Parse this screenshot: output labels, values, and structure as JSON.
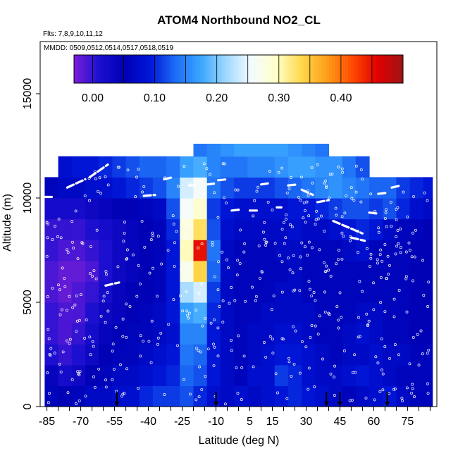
{
  "chart_data": {
    "type": "heatmap",
    "title": "ATOM4 Northbound NO2_CL",
    "subtitle_flights": "Flts: 7,8,9,10,11,12",
    "subtitle_dates": "MMDD: 0509,0512,0514,0517,0518,0519",
    "xlabel": "Latitude (deg N)",
    "ylabel": "Altitude (m)",
    "xlim": [
      -88,
      88
    ],
    "ylim": [
      0,
      17500
    ],
    "x_tick_labels": [
      "-85",
      "-70",
      "-55",
      "-40",
      "-25",
      "-10",
      "5",
      "15",
      "30",
      "45",
      "60",
      "75"
    ],
    "x_tick_values": [
      -85,
      -70,
      -55,
      -40,
      -25,
      -10,
      5,
      15,
      30,
      45,
      60,
      75
    ],
    "y_tick_labels": [
      "0",
      "5000",
      "10000",
      "15000"
    ],
    "y_tick_values": [
      0,
      5000,
      10000,
      15000
    ],
    "colorbar": {
      "range": [
        -0.03,
        0.5
      ],
      "tick_labels": [
        "0.00",
        "0.10",
        "0.20",
        "0.30",
        "0.40"
      ],
      "tick_values": [
        0.0,
        0.1,
        0.2,
        0.3,
        0.4
      ],
      "colors": [
        "#7b1fd8",
        "#1a0fd0",
        "#0000b5",
        "#0016d8",
        "#1c6cf5",
        "#3aa5ff",
        "#9fd8ff",
        "#f4fbff",
        "#ffffc8",
        "#ffd84a",
        "#ff9e1a",
        "#ff4a00",
        "#e00000",
        "#9e1414"
      ]
    },
    "value_grid": {
      "lat_bins": [
        -86,
        -80,
        -74,
        -68,
        -62,
        -56,
        -50,
        -44,
        -38,
        -32,
        -26,
        -20,
        -14,
        -8,
        -2,
        4,
        10,
        16,
        22,
        28,
        34,
        40,
        46,
        52,
        58,
        64,
        70,
        76,
        82,
        86
      ],
      "alt_bins": [
        0,
        1000,
        2000,
        3000,
        4000,
        5000,
        6000,
        7000,
        8000,
        9000,
        10000,
        11000,
        12000,
        12600
      ],
      "values": [
        [
          0.06,
          0.05,
          0.06,
          0.07,
          0.07,
          0.08,
          0.08,
          0.1,
          0.11,
          0.11,
          0.12,
          0.1,
          0.08,
          0.07,
          0.08,
          0.07,
          0.08,
          0.09,
          0.1,
          0.09,
          0.08,
          0.07,
          0.06,
          0.07,
          0.08,
          0.09,
          0.07,
          0.06,
          0.06
        ],
        [
          0.04,
          0.02,
          0.03,
          0.05,
          0.06,
          0.07,
          0.07,
          0.08,
          0.09,
          0.1,
          0.13,
          0.12,
          0.09,
          0.07,
          0.06,
          0.08,
          0.08,
          0.11,
          0.1,
          0.08,
          0.07,
          0.07,
          0.08,
          0.09,
          0.08,
          0.07,
          0.06,
          0.06,
          0.06
        ],
        [
          0.01,
          0.0,
          0.01,
          0.03,
          0.05,
          0.06,
          0.06,
          0.07,
          0.08,
          0.09,
          0.14,
          0.13,
          0.09,
          0.07,
          0.06,
          0.07,
          0.08,
          0.09,
          0.09,
          0.08,
          0.07,
          0.06,
          0.07,
          0.07,
          0.08,
          0.07,
          0.07,
          0.06,
          0.06
        ],
        [
          0.0,
          -0.01,
          0.0,
          0.02,
          0.04,
          0.05,
          0.06,
          0.06,
          0.07,
          0.08,
          0.15,
          0.15,
          0.09,
          0.07,
          0.06,
          0.07,
          0.07,
          0.08,
          0.08,
          0.07,
          0.06,
          0.06,
          0.07,
          0.08,
          0.07,
          0.06,
          0.06,
          0.05,
          0.05
        ],
        [
          0.0,
          -0.01,
          -0.01,
          0.01,
          0.03,
          0.04,
          0.05,
          0.06,
          0.07,
          0.09,
          0.17,
          0.18,
          0.1,
          0.07,
          0.06,
          0.06,
          0.07,
          0.07,
          0.07,
          0.07,
          0.06,
          0.06,
          0.06,
          0.07,
          0.07,
          0.06,
          0.06,
          0.05,
          0.05
        ],
        [
          -0.01,
          -0.02,
          -0.01,
          0.0,
          0.02,
          0.04,
          0.05,
          0.05,
          0.06,
          0.09,
          0.22,
          0.24,
          0.11,
          0.07,
          0.06,
          0.06,
          0.06,
          0.07,
          0.07,
          0.06,
          0.06,
          0.06,
          0.06,
          0.06,
          0.06,
          0.06,
          0.06,
          0.05,
          0.05
        ],
        [
          -0.01,
          -0.02,
          -0.02,
          -0.01,
          0.01,
          0.03,
          0.04,
          0.05,
          0.06,
          0.09,
          0.27,
          0.34,
          0.13,
          0.07,
          0.06,
          0.06,
          0.06,
          0.06,
          0.07,
          0.06,
          0.06,
          0.06,
          0.06,
          0.06,
          0.06,
          0.06,
          0.06,
          0.05,
          0.05
        ],
        [
          0.0,
          -0.01,
          -0.01,
          0.0,
          0.01,
          0.03,
          0.04,
          0.05,
          0.06,
          0.09,
          0.3,
          0.45,
          0.14,
          0.07,
          0.06,
          0.06,
          0.06,
          0.07,
          0.07,
          0.06,
          0.06,
          0.06,
          0.07,
          0.08,
          0.06,
          0.06,
          0.06,
          0.05,
          0.05
        ],
        [
          0.0,
          0.0,
          0.0,
          0.01,
          0.02,
          0.03,
          0.04,
          0.05,
          0.06,
          0.1,
          0.28,
          0.33,
          0.12,
          0.08,
          0.07,
          0.07,
          0.07,
          0.07,
          0.08,
          0.07,
          0.07,
          0.08,
          0.09,
          0.1,
          0.09,
          0.07,
          0.06,
          0.06,
          0.05
        ],
        [
          0.02,
          0.02,
          0.02,
          0.03,
          0.04,
          0.05,
          0.05,
          0.06,
          0.07,
          0.12,
          0.26,
          0.29,
          0.11,
          0.09,
          0.08,
          0.08,
          0.08,
          0.08,
          0.09,
          0.09,
          0.1,
          0.11,
          0.12,
          0.12,
          0.11,
          0.12,
          0.1,
          0.08,
          0.07
        ],
        [
          0.06,
          0.07,
          0.07,
          0.08,
          0.08,
          0.09,
          0.1,
          0.11,
          0.12,
          0.15,
          0.24,
          0.26,
          0.14,
          0.12,
          0.11,
          0.11,
          0.11,
          0.12,
          0.13,
          0.14,
          0.15,
          0.16,
          0.15,
          0.14,
          0.13,
          0.13,
          0.11,
          0.1,
          0.09
        ],
        [
          null,
          0.08,
          0.09,
          0.09,
          0.1,
          0.11,
          0.12,
          0.13,
          0.13,
          0.14,
          0.17,
          0.18,
          0.15,
          0.14,
          0.14,
          0.15,
          0.15,
          0.16,
          0.17,
          0.17,
          0.16,
          0.16,
          0.14,
          0.12,
          null,
          null,
          null,
          null,
          null
        ],
        [
          null,
          null,
          null,
          null,
          null,
          null,
          null,
          null,
          null,
          null,
          null,
          0.14,
          0.15,
          0.16,
          0.17,
          0.17,
          0.17,
          0.17,
          0.16,
          0.15,
          0.14,
          null,
          null,
          null,
          null,
          null,
          null,
          null,
          null
        ]
      ]
    },
    "flight_tracks": [
      {
        "lat": [
          -86,
          -82
        ],
        "alt": [
          10050,
          10050
        ]
      },
      {
        "lat": [
          -76,
          -68
        ],
        "alt": [
          10500,
          10900
        ]
      },
      {
        "lat": [
          -66,
          -58
        ],
        "alt": [
          11000,
          11600
        ]
      },
      {
        "lat": [
          -59,
          -53
        ],
        "alt": [
          5800,
          5950
        ]
      },
      {
        "lat": [
          -42,
          -37
        ],
        "alt": [
          10100,
          10150
        ]
      },
      {
        "lat": [
          -33,
          -29
        ],
        "alt": [
          10900,
          11000
        ]
      },
      {
        "lat": [
          -22,
          -18
        ],
        "alt": [
          10600,
          10620
        ]
      },
      {
        "lat": [
          -14,
          -10
        ],
        "alt": [
          10650,
          10700
        ]
      },
      {
        "lat": [
          -9,
          -5
        ],
        "alt": [
          10850,
          10900
        ]
      },
      {
        "lat": [
          -3,
          1
        ],
        "alt": [
          9400,
          9450
        ]
      },
      {
        "lat": [
          5,
          9
        ],
        "alt": [
          9400,
          9400
        ]
      },
      {
        "lat": [
          10,
          13
        ],
        "alt": [
          10650,
          10700
        ]
      },
      {
        "lat": [
          17,
          19
        ],
        "alt": [
          9550,
          9550
        ]
      },
      {
        "lat": [
          22,
          26
        ],
        "alt": [
          10600,
          10650
        ]
      },
      {
        "lat": [
          28,
          33
        ],
        "alt": [
          10400,
          10150
        ]
      },
      {
        "lat": [
          35,
          40
        ],
        "alt": [
          9800,
          9900
        ]
      },
      {
        "lat": [
          42,
          55
        ],
        "alt": [
          8900,
          8300
        ]
      },
      {
        "lat": [
          50,
          56
        ],
        "alt": [
          8100,
          7950
        ]
      },
      {
        "lat": [
          58,
          62
        ],
        "alt": [
          9300,
          9250
        ]
      },
      {
        "lat": [
          62,
          66
        ],
        "alt": [
          10200,
          10250
        ]
      },
      {
        "lat": [
          68,
          72
        ],
        "alt": [
          10500,
          10600
        ]
      },
      {
        "lat": [
          69,
          73
        ],
        "alt": [
          11100,
          11200
        ]
      }
    ],
    "profile_markers_lat": [
      -54,
      -10,
      39,
      45,
      66
    ]
  }
}
